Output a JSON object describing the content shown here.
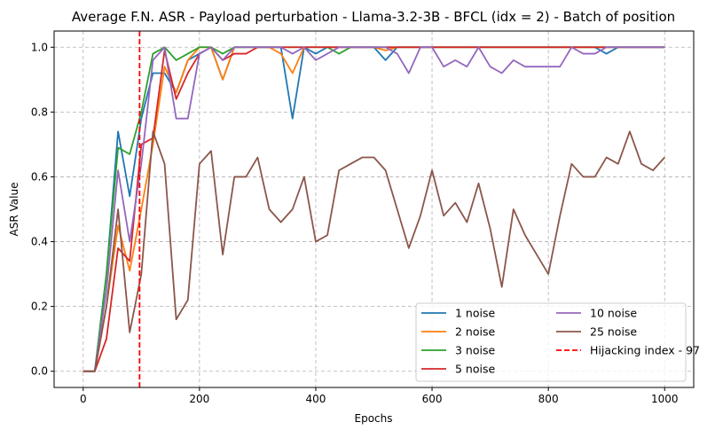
{
  "chart_data": {
    "type": "line",
    "title": "Average F.N. ASR - Payload perturbation - Llama-3.2-3B - BFCL (idx = 2) - Batch of position",
    "xlabel": "Epochs",
    "ylabel": "ASR Value",
    "xlim": [
      -50,
      1050
    ],
    "ylim": [
      -0.05,
      1.05
    ],
    "xticks": [
      0,
      200,
      400,
      600,
      800,
      1000
    ],
    "yticks": [
      0.0,
      0.2,
      0.4,
      0.6,
      0.8,
      1.0
    ],
    "ytick_labels": [
      "0.0",
      "0.2",
      "0.4",
      "0.6",
      "0.8",
      "1.0"
    ],
    "grid": true,
    "legend_placement": "lower-right",
    "x": [
      0,
      20,
      40,
      60,
      80,
      100,
      120,
      140,
      160,
      180,
      200,
      220,
      240,
      260,
      280,
      300,
      320,
      340,
      360,
      380,
      400,
      420,
      440,
      460,
      480,
      500,
      520,
      540,
      560,
      580,
      600,
      620,
      640,
      660,
      680,
      700,
      720,
      740,
      760,
      780,
      800,
      820,
      840,
      860,
      880,
      900,
      920,
      940,
      960,
      980,
      1000
    ],
    "series": [
      {
        "name": "1 noise",
        "color": "#1f77b4",
        "values": [
          0,
          0,
          0.3,
          0.74,
          0.54,
          0.78,
          0.92,
          0.92,
          0.86,
          0.96,
          0.98,
          1,
          0.9,
          1,
          1,
          1,
          1,
          1,
          0.78,
          1,
          0.98,
          1,
          1,
          1,
          1,
          1,
          0.96,
          1,
          1,
          1,
          1,
          1,
          1,
          1,
          1,
          1,
          1,
          1,
          1,
          1,
          1,
          1,
          1,
          1,
          1,
          0.98,
          1,
          1,
          1,
          1,
          1
        ]
      },
      {
        "name": "2 noise",
        "color": "#ff7f0e",
        "values": [
          0,
          0,
          0.2,
          0.45,
          0.31,
          0.5,
          0.7,
          0.94,
          0.86,
          0.96,
          1,
          1,
          0.9,
          1,
          1,
          1,
          1,
          0.98,
          0.92,
          1,
          1,
          1,
          1,
          1,
          1,
          1,
          0.99,
          1,
          1,
          1,
          1,
          1,
          1,
          1,
          1,
          1,
          1,
          1,
          1,
          1,
          1,
          1,
          1,
          1,
          1,
          1,
          1,
          1,
          1,
          1,
          1
        ]
      },
      {
        "name": "3 noise",
        "color": "#2ca02c",
        "values": [
          0,
          0,
          0.3,
          0.69,
          0.67,
          0.8,
          0.98,
          1,
          0.96,
          0.98,
          1,
          1,
          0.98,
          1,
          1,
          1,
          1,
          1,
          1,
          1,
          1,
          1,
          0.98,
          1,
          1,
          1,
          1,
          1,
          1,
          1,
          1,
          1,
          1,
          1,
          1,
          1,
          1,
          1,
          1,
          1,
          1,
          1,
          1,
          1,
          1,
          1,
          1,
          1,
          1,
          1,
          1
        ]
      },
      {
        "name": "5 noise",
        "color": "#d62728",
        "values": [
          0,
          0,
          0.1,
          0.38,
          0.34,
          0.7,
          0.72,
          0.99,
          0.84,
          0.92,
          0.98,
          1,
          0.96,
          0.98,
          0.98,
          1,
          1,
          1,
          1,
          1,
          1,
          1,
          1,
          1,
          1,
          1,
          1,
          1,
          1,
          1,
          1,
          1,
          1,
          1,
          1,
          1,
          1,
          1,
          1,
          1,
          1,
          1,
          1,
          1,
          1,
          1,
          1,
          1,
          1,
          1,
          1
        ]
      },
      {
        "name": "10 noise",
        "color": "#9467bd",
        "values": [
          0,
          0,
          0.25,
          0.62,
          0.4,
          0.64,
          0.96,
          1,
          0.78,
          0.78,
          0.98,
          1,
          0.96,
          1,
          1,
          1,
          1,
          1,
          0.98,
          1,
          0.96,
          0.98,
          1,
          1,
          1,
          1,
          1,
          0.98,
          0.92,
          1,
          1,
          0.94,
          0.96,
          0.94,
          1,
          0.94,
          0.92,
          0.96,
          0.94,
          0.94,
          0.94,
          0.94,
          1,
          0.98,
          0.98,
          1,
          1,
          1,
          1,
          1,
          1
        ]
      },
      {
        "name": "25 noise",
        "color": "#8c564b",
        "values": [
          0,
          0,
          0.2,
          0.5,
          0.12,
          0.3,
          0.74,
          0.64,
          0.16,
          0.22,
          0.64,
          0.68,
          0.36,
          0.6,
          0.6,
          0.66,
          0.5,
          0.46,
          0.5,
          0.6,
          0.4,
          0.42,
          0.62,
          0.64,
          0.66,
          0.66,
          0.62,
          0.5,
          0.38,
          0.48,
          0.62,
          0.48,
          0.52,
          0.46,
          0.58,
          0.44,
          0.26,
          0.5,
          0.42,
          0.36,
          0.3,
          0.48,
          0.64,
          0.6,
          0.6,
          0.66,
          0.64,
          0.74,
          0.64,
          0.62,
          0.66
        ]
      }
    ],
    "vline": {
      "name": "Hijacking index - 97",
      "x": 97,
      "color": "#ff0000",
      "style": "dashed"
    }
  }
}
